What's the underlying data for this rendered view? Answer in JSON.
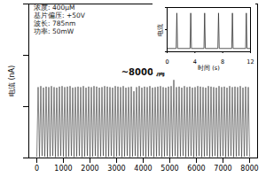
{
  "chart_data": [
    {
      "type": "line",
      "y_label": "电流 (nA)",
      "info_box": [
        "浓度: 400μM",
        "基片偏压: +50V",
        "波长: 785nm",
        "功率: 50mW"
      ],
      "annotations": [
        {
          "text": "~8000 滴",
          "x": 4000,
          "y": 830
        }
      ],
      "x": [
        0,
        50,
        100,
        150,
        200,
        250,
        300,
        350,
        400,
        450,
        500,
        550,
        600,
        650,
        700,
        750,
        800,
        850,
        900,
        950,
        1000,
        1050,
        1100,
        1150,
        1200,
        1250,
        1300,
        1350,
        1400,
        1450,
        1500,
        1550,
        1600,
        1650,
        1700,
        1750,
        1800,
        1850,
        1900,
        1950,
        2000,
        2050,
        2100,
        2150,
        2200,
        2250,
        2300,
        2350,
        2400,
        2450,
        2500,
        2550,
        2600,
        2650,
        2700,
        2750,
        2800,
        2850,
        2900,
        2950,
        3000,
        3050,
        3100,
        3150,
        3200,
        3250,
        3300,
        3350,
        3400,
        3450,
        3500,
        3550,
        3600,
        3650,
        3700,
        3750,
        3800,
        3850,
        3900,
        3950,
        4000,
        4050,
        4100,
        4150,
        4200,
        4250,
        4300,
        4350,
        4400,
        4450,
        4500,
        4550,
        4600,
        4650,
        4700,
        4750,
        4800,
        4850,
        4900,
        4950,
        5000,
        5050,
        5100,
        5150,
        5200,
        5250,
        5300,
        5350,
        5400,
        5450,
        5500,
        5550,
        5600,
        5650,
        5700,
        5750,
        5800,
        5850,
        5900,
        5950,
        6000,
        6050,
        6100,
        6150,
        6200,
        6250,
        6300,
        6350,
        6400,
        6450,
        6500,
        6550,
        6600,
        6650,
        6700,
        6750,
        6800,
        6850,
        6900,
        6950,
        7000,
        7050,
        7100,
        7150,
        7200,
        7250,
        7300,
        7350,
        7400,
        7450,
        7500,
        7550,
        7600,
        7650,
        7700,
        7750,
        7800,
        7850,
        7900,
        7950,
        8000
      ],
      "series": [
        {
          "name": "电流",
          "color": "#333333",
          "values": [
            15,
            690,
            10,
            700,
            20,
            685,
            15,
            695,
            10,
            690,
            15,
            700,
            20,
            690,
            10,
            685,
            15,
            695,
            20,
            700,
            15,
            690,
            10,
            695,
            15,
            700,
            20,
            685,
            10,
            690,
            15,
            695,
            20,
            690,
            10,
            700,
            15,
            685,
            20,
            695,
            10,
            690,
            15,
            700,
            20,
            695,
            10,
            685,
            15,
            690,
            20,
            700,
            10,
            695,
            15,
            690,
            20,
            685,
            10,
            700,
            15,
            695,
            20,
            690,
            10,
            700,
            15,
            685,
            20,
            690,
            10,
            695,
            15,
            650,
            20,
            690,
            10,
            700,
            15,
            685,
            20,
            695,
            10,
            690,
            15,
            700,
            20,
            685,
            10,
            690,
            15,
            695,
            20,
            700,
            10,
            690,
            15,
            685,
            20,
            695,
            10,
            700,
            15,
            760,
            20,
            690,
            10,
            695,
            15,
            685,
            20,
            700,
            10,
            690,
            15,
            695,
            20,
            685,
            10,
            690,
            15,
            700,
            20,
            695,
            10,
            690,
            15,
            685,
            20,
            700,
            10,
            695,
            15,
            690,
            20,
            685,
            10,
            700,
            15,
            690,
            20,
            695,
            10,
            685,
            15,
            700,
            20,
            690,
            10,
            695,
            15,
            690,
            20,
            700,
            10,
            685,
            15,
            695,
            20,
            690,
            15
          ]
        }
      ],
      "xlim": [
        -300,
        8300
      ],
      "xticks": [
        0,
        1000,
        2000,
        3000,
        4000,
        5000,
        6000,
        7000,
        8000
      ],
      "ylim": [
        0,
        1500
      ],
      "yticks": [
        0,
        500,
        1000,
        1500
      ],
      "tick_labels": "x"
    },
    {
      "type": "line",
      "x_label": "时间 (s)",
      "y_label": "电流",
      "x": [
        0,
        1.3,
        1.4,
        1.5,
        3.3,
        3.4,
        3.5,
        5.3,
        5.4,
        5.5,
        7.3,
        7.4,
        7.5,
        9.3,
        9.4,
        9.5,
        11.3,
        11.4,
        11.5,
        12
      ],
      "series": [
        {
          "name": "电流",
          "color": "#333333",
          "values": [
            60,
            60,
            700,
            60,
            60,
            700,
            60,
            60,
            700,
            60,
            60,
            700,
            60,
            60,
            700,
            60,
            60,
            700,
            60,
            60
          ]
        }
      ],
      "xlim": [
        0,
        12
      ],
      "xticks": [
        0,
        4,
        8,
        12
      ],
      "ylim": [
        0,
        800
      ],
      "yticks": [
        0,
        400,
        800
      ],
      "tick_labels": "x"
    }
  ]
}
